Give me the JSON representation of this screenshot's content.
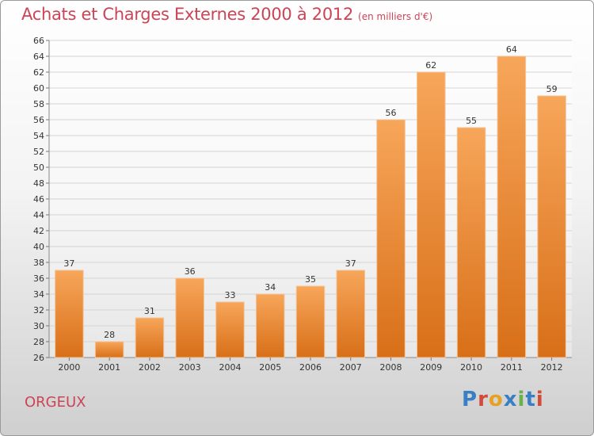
{
  "header": {
    "title": "Achats et Charges Externes 2000 à 2012",
    "subtitle": "(en milliers d'€)"
  },
  "footer": {
    "place": "ORGEUX",
    "logo": "Proxiti"
  },
  "chart_data": {
    "type": "bar",
    "categories": [
      "2000",
      "2001",
      "2002",
      "2003",
      "2004",
      "2005",
      "2006",
      "2007",
      "2008",
      "2009",
      "2010",
      "2011",
      "2012"
    ],
    "values": [
      37,
      28,
      31,
      36,
      33,
      34,
      35,
      37,
      56,
      62,
      55,
      64,
      59
    ],
    "ylim": [
      26,
      66
    ],
    "yticks": [
      26,
      28,
      30,
      32,
      34,
      36,
      38,
      40,
      42,
      44,
      46,
      48,
      50,
      52,
      54,
      56,
      58,
      60,
      62,
      64,
      66
    ],
    "grid": true,
    "bar_color_top": "#f7a65a",
    "bar_color_bottom": "#d86f18",
    "title": "Achats et Charges Externes 2000 à 2012",
    "subtitle": "(en milliers d'€)"
  },
  "colors": {
    "title": "#cc4455",
    "logo": [
      "#3a7fc4",
      "#d24a3a",
      "#e8a020",
      "#3a7fc4",
      "#6ab04c",
      "#3a7fc4",
      "#d24a3a"
    ]
  }
}
